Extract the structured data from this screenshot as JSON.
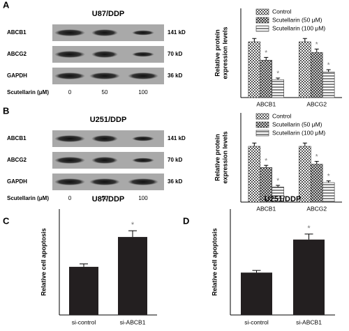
{
  "panel_labels": [
    "A",
    "B",
    "C",
    "D"
  ],
  "blots": [
    {
      "title": "U87/DDP",
      "rows": [
        {
          "name": "ABCB1",
          "size": "141 kD"
        },
        {
          "name": "ABCG2",
          "size": "70 kD"
        },
        {
          "name": "GAPDH",
          "size": "36 kD"
        }
      ],
      "treatment_label": "Scutellarin (μM)",
      "doses": [
        "0",
        "50",
        "100"
      ]
    },
    {
      "title": "U251/DDP",
      "rows": [
        {
          "name": "ABCB1",
          "size": "141 kD"
        },
        {
          "name": "ABCG2",
          "size": "70 kD"
        },
        {
          "name": "GAPDH",
          "size": "36 kD"
        }
      ],
      "treatment_label": "Scutellarin (μM)",
      "doses": [
        "0",
        "50",
        "100"
      ]
    }
  ],
  "chart_data": [
    {
      "type": "grouped-bar",
      "ylabel": [
        "Relative protein",
        "expression levels"
      ],
      "categories": [
        "ABCB1",
        "ABCG2"
      ],
      "ylim": [
        0,
        1.6
      ],
      "legend": "upper right",
      "series": [
        {
          "name": "Control",
          "color": "#555555",
          "hatch": "grid",
          "values": [
            1.0,
            1.0
          ],
          "errors": [
            0.06,
            0.06
          ]
        },
        {
          "name": "Scutellarin (50 μM)",
          "color": "#333333",
          "hatch": "cross",
          "values": [
            0.67,
            0.81
          ],
          "errors": [
            0.05,
            0.06
          ],
          "annotations": [
            "*",
            "*"
          ]
        },
        {
          "name": "Scutellarin (100 μM)",
          "color": "#444444",
          "hatch": "horizontal",
          "values": [
            0.32,
            0.46
          ],
          "errors": [
            0.03,
            0.04
          ],
          "annotations": [
            "*",
            "*"
          ]
        }
      ]
    },
    {
      "type": "grouped-bar",
      "ylabel": [
        "Relative protein",
        "expression levels"
      ],
      "categories": [
        "ABCB1",
        "ABCG2"
      ],
      "ylim": [
        0,
        1.6
      ],
      "legend": "upper right",
      "series": [
        {
          "name": "Control",
          "color": "#555555",
          "hatch": "grid",
          "values": [
            1.0,
            1.0
          ],
          "errors": [
            0.06,
            0.06
          ]
        },
        {
          "name": "Scutellarin (50 μM)",
          "color": "#333333",
          "hatch": "cross",
          "values": [
            0.62,
            0.68
          ],
          "errors": [
            0.04,
            0.05
          ],
          "annotations": [
            "*",
            "*"
          ]
        },
        {
          "name": "Scutellarin (100 μM)",
          "color": "#444444",
          "hatch": "horizontal",
          "values": [
            0.27,
            0.35
          ],
          "errors": [
            0.03,
            0.03
          ],
          "annotations": [
            "*",
            "*"
          ]
        }
      ]
    },
    {
      "type": "bar",
      "title": "U87/DDP",
      "ylabel": [
        "Relative cell apoptosis"
      ],
      "categories": [
        "si-control",
        "si-ABCB1"
      ],
      "values": [
        1.0,
        1.62
      ],
      "errors": [
        0.06,
        0.13
      ],
      "annotations": [
        null,
        "*"
      ],
      "color": "#231f20",
      "ylim": [
        0,
        2.2
      ]
    },
    {
      "type": "bar",
      "title": "U251/DDP",
      "ylabel": [
        "Relative cell apoptosis"
      ],
      "categories": [
        "si-control",
        "si-ABCB1"
      ],
      "values": [
        1.0,
        1.78
      ],
      "errors": [
        0.05,
        0.13
      ],
      "annotations": [
        null,
        "*"
      ],
      "color": "#231f20",
      "ylim": [
        0,
        2.5
      ]
    }
  ]
}
